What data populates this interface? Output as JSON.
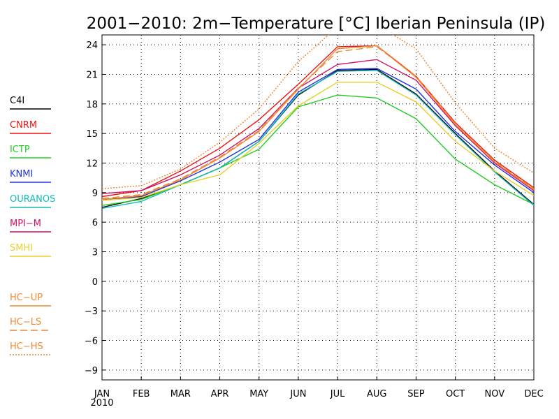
{
  "chart_data": {
    "type": "line",
    "title": "2001−2010: 2m−Temperature [°C] Iberian Peninsula (IP)",
    "categories": [
      "JAN",
      "FEB",
      "MAR",
      "APR",
      "MAY",
      "JUN",
      "JUL",
      "AUG",
      "SEP",
      "OCT",
      "NOV",
      "DEC"
    ],
    "x_sublabel": "2010",
    "yticks": [
      24,
      21,
      18,
      15,
      12,
      9,
      6,
      3,
      0,
      -3,
      -6,
      -9
    ],
    "ylim": [
      -10,
      25
    ],
    "grid": true,
    "legend_position": "left",
    "series": [
      {
        "name": "C4I",
        "color": "#000000",
        "dash": "solid",
        "values": [
          7.5,
          8.4,
          9.8,
          11.5,
          14.2,
          18.9,
          21.4,
          21.5,
          19.0,
          15.0,
          11.2,
          7.8
        ]
      },
      {
        "name": "CNRM",
        "color": "#ee1111",
        "dash": "solid",
        "values": [
          8.6,
          9.2,
          11.2,
          13.5,
          16.4,
          20.0,
          23.8,
          23.9,
          20.8,
          16.1,
          12.3,
          9.5
        ]
      },
      {
        "name": "ICTP",
        "color": "#22cc22",
        "dash": "solid",
        "values": [
          7.7,
          8.3,
          9.8,
          11.5,
          13.4,
          17.7,
          18.9,
          18.6,
          16.5,
          12.4,
          9.8,
          7.8
        ]
      },
      {
        "name": "KNMI",
        "color": "#2233dd",
        "dash": "solid",
        "values": [
          8.3,
          8.6,
          10.2,
          12.1,
          14.4,
          19.2,
          21.5,
          21.6,
          19.5,
          15.2,
          11.8,
          9.0
        ]
      },
      {
        "name": "OURANOS",
        "color": "#11bbbb",
        "dash": "solid",
        "values": [
          7.4,
          8.1,
          9.8,
          11.5,
          14.2,
          19.0,
          21.3,
          21.4,
          18.9,
          14.9,
          11.1,
          7.7
        ]
      },
      {
        "name": "MPI−M",
        "color": "#cc1166",
        "dash": "solid",
        "values": [
          8.9,
          9.2,
          10.8,
          12.8,
          15.5,
          19.6,
          22.0,
          22.5,
          20.4,
          15.8,
          12.0,
          9.2
        ]
      },
      {
        "name": "SMHI",
        "color": "#e8d02a",
        "dash": "solid",
        "values": [
          8.2,
          8.5,
          9.8,
          10.8,
          14.0,
          17.8,
          20.2,
          20.2,
          18.2,
          14.2,
          11.2,
          8.7
        ]
      },
      {
        "name": "HC−UP",
        "color": "#ee8833",
        "dash": "solid",
        "values": [
          8.3,
          8.7,
          10.3,
          12.5,
          15.2,
          19.5,
          23.6,
          23.9,
          20.7,
          15.9,
          12.1,
          9.3
        ]
      },
      {
        "name": "HC−LS",
        "color": "#ee8833",
        "dash": "dashed",
        "values": [
          8.4,
          8.8,
          10.4,
          12.6,
          15.3,
          19.6,
          23.3,
          23.8,
          20.8,
          16.0,
          12.2,
          9.4
        ]
      },
      {
        "name": "HC−HS",
        "color": "#ee8833",
        "dash": "dotted",
        "values": [
          9.4,
          9.7,
          11.4,
          14.1,
          17.5,
          22.3,
          25.8,
          26.0,
          23.6,
          18.1,
          13.5,
          11.0
        ]
      }
    ]
  }
}
